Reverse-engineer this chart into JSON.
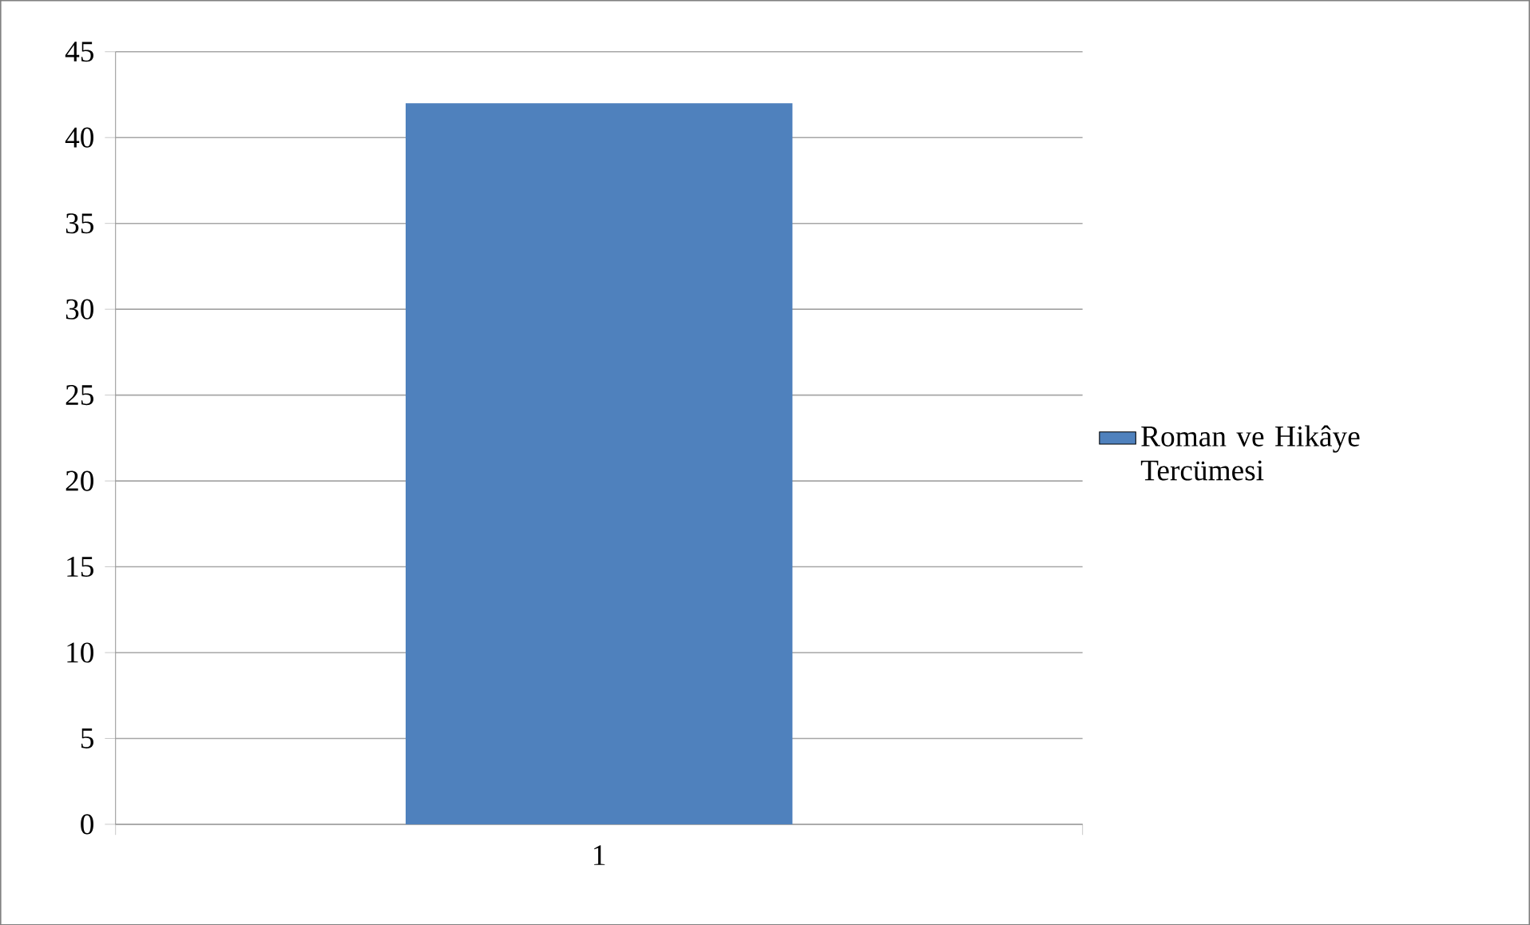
{
  "chart_data": {
    "type": "bar",
    "categories": [
      "1"
    ],
    "series": [
      {
        "name": "Roman ve Hikâye Tercümesi",
        "color": "#4f81bd",
        "values": [
          42
        ]
      }
    ],
    "ylim": [
      0,
      45
    ],
    "yticks": [
      0,
      5,
      10,
      15,
      20,
      25,
      30,
      35,
      40,
      45
    ],
    "grid": "y",
    "legend": "right"
  }
}
